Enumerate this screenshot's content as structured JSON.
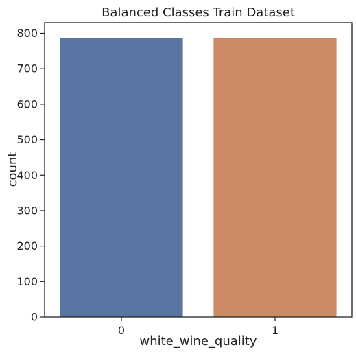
{
  "chart_data": {
    "type": "bar",
    "title": "Balanced Classes Train Dataset",
    "xlabel": "white_wine_quality",
    "ylabel": "count",
    "categories": [
      "0",
      "1"
    ],
    "values": [
      786,
      786
    ],
    "ylim": [
      0,
      830
    ],
    "yticks": [
      0,
      100,
      200,
      300,
      400,
      500,
      600,
      700,
      800
    ],
    "grid": false,
    "legend": "none",
    "colors": [
      "#5975a4",
      "#cc8963"
    ],
    "axis_color": "#222222"
  }
}
